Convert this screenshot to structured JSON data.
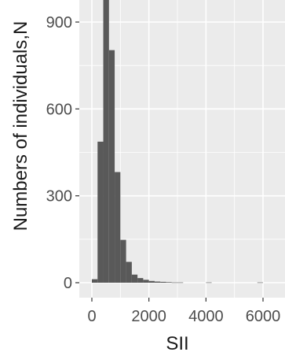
{
  "chart_data": {
    "type": "bar",
    "title": "",
    "xlabel": "SII",
    "ylabel": "Numbers of individuals,N",
    "x_ticks": [
      "0",
      "2000",
      "4000",
      "6000"
    ],
    "y_ticks": [
      "0",
      "300",
      "600",
      "900"
    ],
    "xlim": [
      -450,
      6000
    ],
    "ylim": [
      -50,
      1000
    ],
    "grid": true,
    "panel_color": "#ebebeb",
    "grid_color": "#ffffff",
    "bar_color": "#595959",
    "bin_width": 200,
    "bins": [
      {
        "x": 0,
        "count": 12
      },
      {
        "x": 200,
        "count": 487
      },
      {
        "x": 400,
        "count": 1000
      },
      {
        "x": 600,
        "count": 803
      },
      {
        "x": 800,
        "count": 382
      },
      {
        "x": 1000,
        "count": 148
      },
      {
        "x": 1200,
        "count": 72
      },
      {
        "x": 1400,
        "count": 28
      },
      {
        "x": 1600,
        "count": 16
      },
      {
        "x": 1800,
        "count": 10
      },
      {
        "x": 2000,
        "count": 6
      },
      {
        "x": 2200,
        "count": 4
      },
      {
        "x": 2400,
        "count": 3
      },
      {
        "x": 2600,
        "count": 2
      },
      {
        "x": 2800,
        "count": 1
      },
      {
        "x": 3000,
        "count": 1
      },
      {
        "x": 4000,
        "count": 1
      },
      {
        "x": 5800,
        "count": 1
      }
    ]
  }
}
